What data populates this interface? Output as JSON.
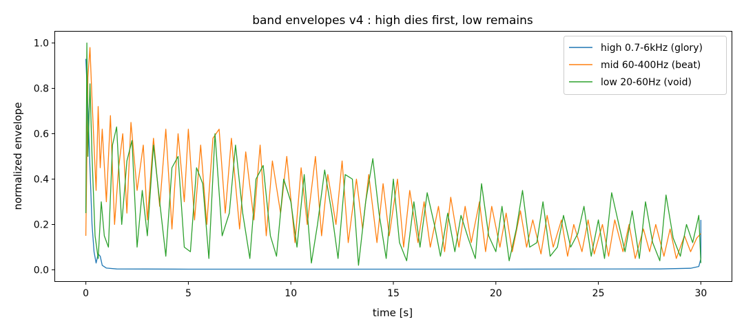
{
  "chart_data": {
    "type": "line",
    "title": "band envelopes v4 : high dies first, low remains",
    "xlabel": "time [s]",
    "ylabel": "normalized envelope",
    "xlim": [
      -1.5,
      31.5
    ],
    "ylim": [
      -0.05,
      1.05
    ],
    "xticks": [
      0,
      5,
      10,
      15,
      20,
      25,
      30
    ],
    "yticks": [
      0.0,
      0.2,
      0.4,
      0.6,
      0.8,
      1.0
    ],
    "xtick_labels": [
      "0",
      "5",
      "10",
      "15",
      "20",
      "25",
      "30"
    ],
    "ytick_labels": [
      "0.0",
      "0.2",
      "0.4",
      "0.6",
      "0.8",
      "1.0"
    ],
    "grid": false,
    "legend_position": "top-right",
    "series": [
      {
        "name": "high 0.7-6kHz (glory)",
        "color": "#1f77b4",
        "x": [
          0,
          0.1,
          0.2,
          0.3,
          0.4,
          0.5,
          0.6,
          0.7,
          0.8,
          1.0,
          1.5,
          5,
          10,
          20,
          28,
          29.5,
          29.9,
          30.0,
          30.0
        ],
        "y": [
          0.93,
          0.72,
          0.45,
          0.2,
          0.08,
          0.03,
          0.07,
          0.06,
          0.02,
          0.008,
          0.004,
          0.003,
          0.003,
          0.003,
          0.004,
          0.007,
          0.015,
          0.05,
          0.22
        ]
      },
      {
        "name": "mid 60-400Hz (beat)",
        "color": "#ff7f0e",
        "x": [
          0.0,
          0.1,
          0.2,
          0.3,
          0.4,
          0.5,
          0.6,
          0.7,
          0.8,
          1.0,
          1.2,
          1.4,
          1.6,
          1.8,
          2.0,
          2.2,
          2.5,
          2.8,
          3.0,
          3.3,
          3.6,
          3.9,
          4.2,
          4.5,
          4.8,
          5.0,
          5.3,
          5.6,
          5.9,
          6.2,
          6.5,
          6.8,
          7.1,
          7.5,
          7.8,
          8.2,
          8.5,
          8.8,
          9.1,
          9.5,
          9.8,
          10.2,
          10.5,
          10.8,
          11.2,
          11.5,
          11.8,
          12.2,
          12.5,
          12.8,
          13.2,
          13.5,
          13.8,
          14.2,
          14.5,
          14.8,
          15.2,
          15.5,
          15.8,
          16.2,
          16.5,
          16.8,
          17.2,
          17.5,
          17.8,
          18.2,
          18.5,
          18.8,
          19.2,
          19.5,
          19.8,
          20.2,
          20.5,
          20.8,
          21.2,
          21.5,
          21.8,
          22.2,
          22.5,
          22.8,
          23.2,
          23.5,
          23.8,
          24.2,
          24.5,
          24.8,
          25.2,
          25.5,
          25.8,
          26.2,
          26.5,
          26.8,
          27.2,
          27.5,
          27.8,
          28.2,
          28.5,
          28.8,
          29.2,
          29.5,
          29.8,
          30.0
        ],
        "y": [
          0.15,
          0.85,
          0.98,
          0.75,
          0.55,
          0.35,
          0.72,
          0.45,
          0.62,
          0.3,
          0.68,
          0.2,
          0.45,
          0.6,
          0.25,
          0.65,
          0.35,
          0.55,
          0.22,
          0.58,
          0.28,
          0.62,
          0.18,
          0.6,
          0.3,
          0.62,
          0.22,
          0.55,
          0.2,
          0.58,
          0.62,
          0.25,
          0.58,
          0.18,
          0.52,
          0.22,
          0.55,
          0.15,
          0.48,
          0.25,
          0.5,
          0.12,
          0.45,
          0.2,
          0.5,
          0.15,
          0.42,
          0.2,
          0.48,
          0.12,
          0.4,
          0.18,
          0.42,
          0.12,
          0.38,
          0.15,
          0.4,
          0.1,
          0.35,
          0.12,
          0.3,
          0.1,
          0.28,
          0.08,
          0.32,
          0.1,
          0.28,
          0.12,
          0.3,
          0.08,
          0.28,
          0.1,
          0.25,
          0.08,
          0.26,
          0.1,
          0.22,
          0.07,
          0.24,
          0.1,
          0.22,
          0.06,
          0.2,
          0.08,
          0.22,
          0.07,
          0.2,
          0.06,
          0.22,
          0.08,
          0.2,
          0.05,
          0.18,
          0.08,
          0.2,
          0.06,
          0.18,
          0.05,
          0.15,
          0.08,
          0.14,
          0.16
        ]
      },
      {
        "name": "low 20-60Hz (void)",
        "color": "#2ca02c",
        "x": [
          0.0,
          0.05,
          0.1,
          0.2,
          0.3,
          0.45,
          0.6,
          0.75,
          0.9,
          1.1,
          1.3,
          1.5,
          1.75,
          2.0,
          2.25,
          2.5,
          2.75,
          3.0,
          3.3,
          3.6,
          3.9,
          4.2,
          4.5,
          4.8,
          5.1,
          5.4,
          5.7,
          6.0,
          6.3,
          6.65,
          7.0,
          7.3,
          7.65,
          8.0,
          8.3,
          8.65,
          9.0,
          9.3,
          9.65,
          10.0,
          10.3,
          10.65,
          11.0,
          11.3,
          11.65,
          12.0,
          12.3,
          12.65,
          13.0,
          13.3,
          13.65,
          14.0,
          14.3,
          14.65,
          15.0,
          15.3,
          15.65,
          16.0,
          16.3,
          16.65,
          17.0,
          17.3,
          17.65,
          18.0,
          18.3,
          18.65,
          19.0,
          19.3,
          19.65,
          20.0,
          20.3,
          20.65,
          21.0,
          21.3,
          21.65,
          22.0,
          22.3,
          22.65,
          23.0,
          23.3,
          23.65,
          24.0,
          24.3,
          24.65,
          25.0,
          25.3,
          25.65,
          26.0,
          26.3,
          26.65,
          27.0,
          27.3,
          27.65,
          28.0,
          28.3,
          28.65,
          29.0,
          29.3,
          29.6,
          29.9,
          30.0
        ],
        "y": [
          0.25,
          1.0,
          0.5,
          0.82,
          0.5,
          0.15,
          0.05,
          0.3,
          0.15,
          0.1,
          0.55,
          0.63,
          0.2,
          0.48,
          0.57,
          0.1,
          0.35,
          0.15,
          0.55,
          0.3,
          0.06,
          0.45,
          0.5,
          0.1,
          0.08,
          0.45,
          0.38,
          0.05,
          0.6,
          0.15,
          0.25,
          0.55,
          0.25,
          0.05,
          0.4,
          0.46,
          0.15,
          0.06,
          0.4,
          0.3,
          0.1,
          0.42,
          0.03,
          0.2,
          0.44,
          0.25,
          0.05,
          0.42,
          0.4,
          0.02,
          0.3,
          0.49,
          0.25,
          0.05,
          0.4,
          0.12,
          0.04,
          0.3,
          0.1,
          0.34,
          0.2,
          0.06,
          0.25,
          0.08,
          0.24,
          0.14,
          0.05,
          0.38,
          0.15,
          0.08,
          0.28,
          0.04,
          0.18,
          0.35,
          0.1,
          0.12,
          0.3,
          0.06,
          0.1,
          0.24,
          0.1,
          0.16,
          0.28,
          0.06,
          0.22,
          0.05,
          0.34,
          0.2,
          0.08,
          0.26,
          0.05,
          0.3,
          0.12,
          0.04,
          0.33,
          0.14,
          0.06,
          0.2,
          0.12,
          0.24,
          0.03
        ]
      }
    ]
  }
}
